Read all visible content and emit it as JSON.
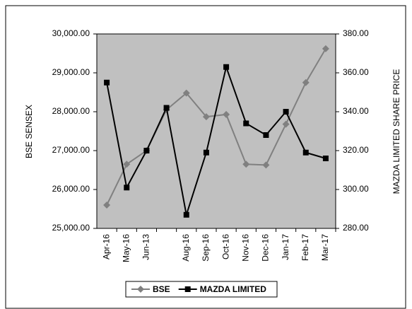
{
  "chart_data": {
    "type": "line",
    "categories": [
      "Apr-16",
      "May-16",
      "Jun-13",
      null,
      "Aug-16",
      "Sep-16",
      "Oct-16",
      "Nov-16",
      "Dec-16",
      "Jan-17",
      "Feb-17",
      "Mar-17"
    ],
    "y_label": "BSE SENSEX",
    "y2_label": "MAZDA LIMITED SHARE PRICE",
    "ylim": [
      25000,
      30000
    ],
    "yticks": [
      {
        "value": 25000,
        "label": "25,000.00"
      },
      {
        "value": 26000,
        "label": "26,000.00"
      },
      {
        "value": 27000,
        "label": "27,000.00"
      },
      {
        "value": 28000,
        "label": "28,000.00"
      },
      {
        "value": 29000,
        "label": "29,000.00"
      },
      {
        "value": 30000,
        "label": "30,000.00"
      }
    ],
    "y2lim": [
      280,
      380
    ],
    "y2ticks": [
      {
        "value": 280,
        "label": "280.00"
      },
      {
        "value": 300,
        "label": "300.00"
      },
      {
        "value": 320,
        "label": "320.00"
      },
      {
        "value": 340,
        "label": "340.00"
      },
      {
        "value": 360,
        "label": "360.00"
      },
      {
        "value": 380,
        "label": "380.00"
      }
    ],
    "legend": "bottom",
    "background": "#c0c0c0",
    "series": [
      {
        "name": "BSE",
        "color": "#808080",
        "marker": "diamond",
        "values": [
          25600,
          26650,
          27000,
          28050,
          28480,
          27870,
          27930,
          26650,
          26630,
          27680,
          28750,
          29620
        ]
      },
      {
        "name": "MAZDA LIMITED",
        "color": "#000000",
        "marker": "square",
        "axis": "y2",
        "values": [
          355,
          301,
          320,
          342,
          287,
          319,
          363,
          334,
          328,
          340,
          319,
          316
        ]
      }
    ]
  }
}
